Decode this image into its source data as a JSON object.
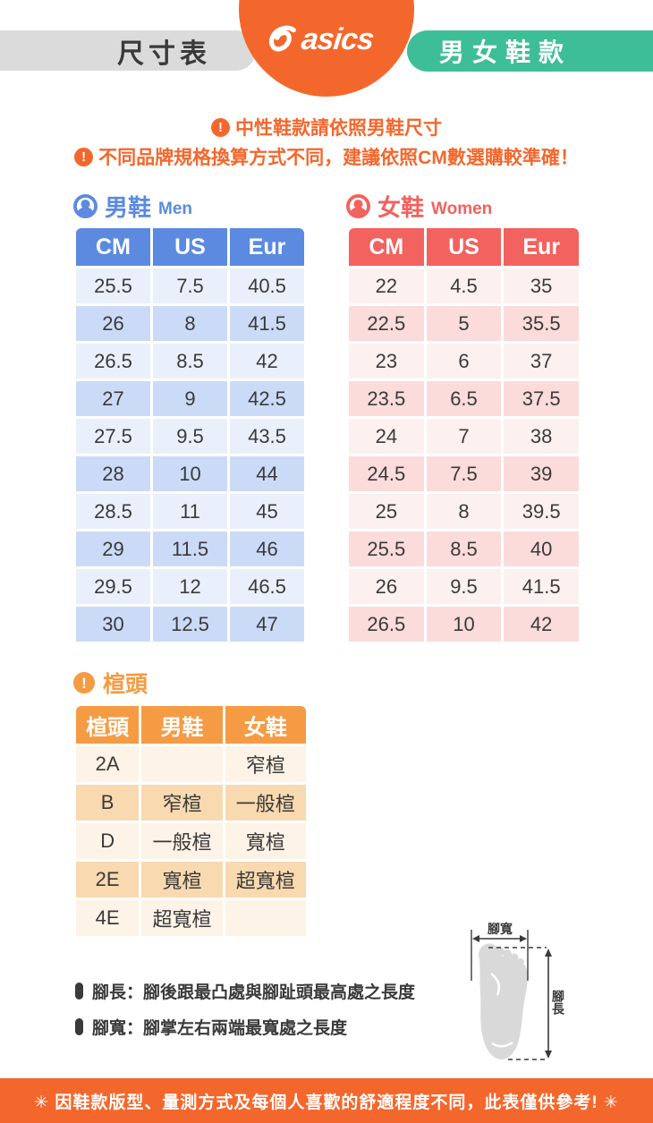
{
  "header": {
    "left_pill": "尺寸表",
    "right_pill": "男女鞋款",
    "logo_word": "asics"
  },
  "icons": {
    "exclamation": "!"
  },
  "notices": [
    "中性鞋款請依照男鞋尺寸",
    "不同品牌規格換算方式不同，建議依照CM數選購較準確！"
  ],
  "men_section": {
    "title": "男鞋",
    "title_en": "Men",
    "table": {
      "header": [
        "CM",
        "US",
        "Eur"
      ],
      "rows": [
        [
          "25.5",
          "7.5",
          "40.5"
        ],
        [
          "26",
          "8",
          "41.5"
        ],
        [
          "26.5",
          "8.5",
          "42"
        ],
        [
          "27",
          "9",
          "42.5"
        ],
        [
          "27.5",
          "9.5",
          "43.5"
        ],
        [
          "28",
          "10",
          "44"
        ],
        [
          "28.5",
          "11",
          "45"
        ],
        [
          "29",
          "11.5",
          "46"
        ],
        [
          "29.5",
          "12",
          "46.5"
        ],
        [
          "30",
          "12.5",
          "47"
        ]
      ]
    }
  },
  "women_section": {
    "title": "女鞋",
    "title_en": "Women",
    "table": {
      "header": [
        "CM",
        "US",
        "Eur"
      ],
      "rows": [
        [
          "22",
          "4.5",
          "35"
        ],
        [
          "22.5",
          "5",
          "35.5"
        ],
        [
          "23",
          "6",
          "37"
        ],
        [
          "23.5",
          "6.5",
          "37.5"
        ],
        [
          "24",
          "7",
          "38"
        ],
        [
          "24.5",
          "7.5",
          "39"
        ],
        [
          "25",
          "8",
          "39.5"
        ],
        [
          "25.5",
          "8.5",
          "40"
        ],
        [
          "26",
          "9.5",
          "41.5"
        ],
        [
          "26.5",
          "10",
          "42"
        ]
      ]
    }
  },
  "width_section": {
    "title": "楦頭",
    "table": {
      "header": [
        "楦頭",
        "男鞋",
        "女鞋"
      ],
      "rows": [
        [
          "2A",
          "",
          "窄楦"
        ],
        [
          "B",
          "窄楦",
          "一般楦"
        ],
        [
          "D",
          "一般楦",
          "寬楦"
        ],
        [
          "2E",
          "寬楦",
          "超寬楦"
        ],
        [
          "4E",
          "超寬楦",
          ""
        ]
      ]
    }
  },
  "foot_diagram": {
    "width_label": "腳寬",
    "length_label": "腳長"
  },
  "notes": [
    "腳長：腳後跟最凸處與腳趾頭最高處之長度",
    "腳寬：腳掌左右兩端最寬處之長度"
  ],
  "footer": "✳ 因鞋款版型、量測方式及每個人喜歡的舒適程度不同，此表僅供參考! ✳",
  "colors": {
    "brand_orange": "#F4672C",
    "width_orange": "#F59B43",
    "men_blue": "#5B8AE0",
    "women_red": "#F2625E",
    "green": "#3EBE96",
    "gray_pill": "#DBDBDB"
  }
}
